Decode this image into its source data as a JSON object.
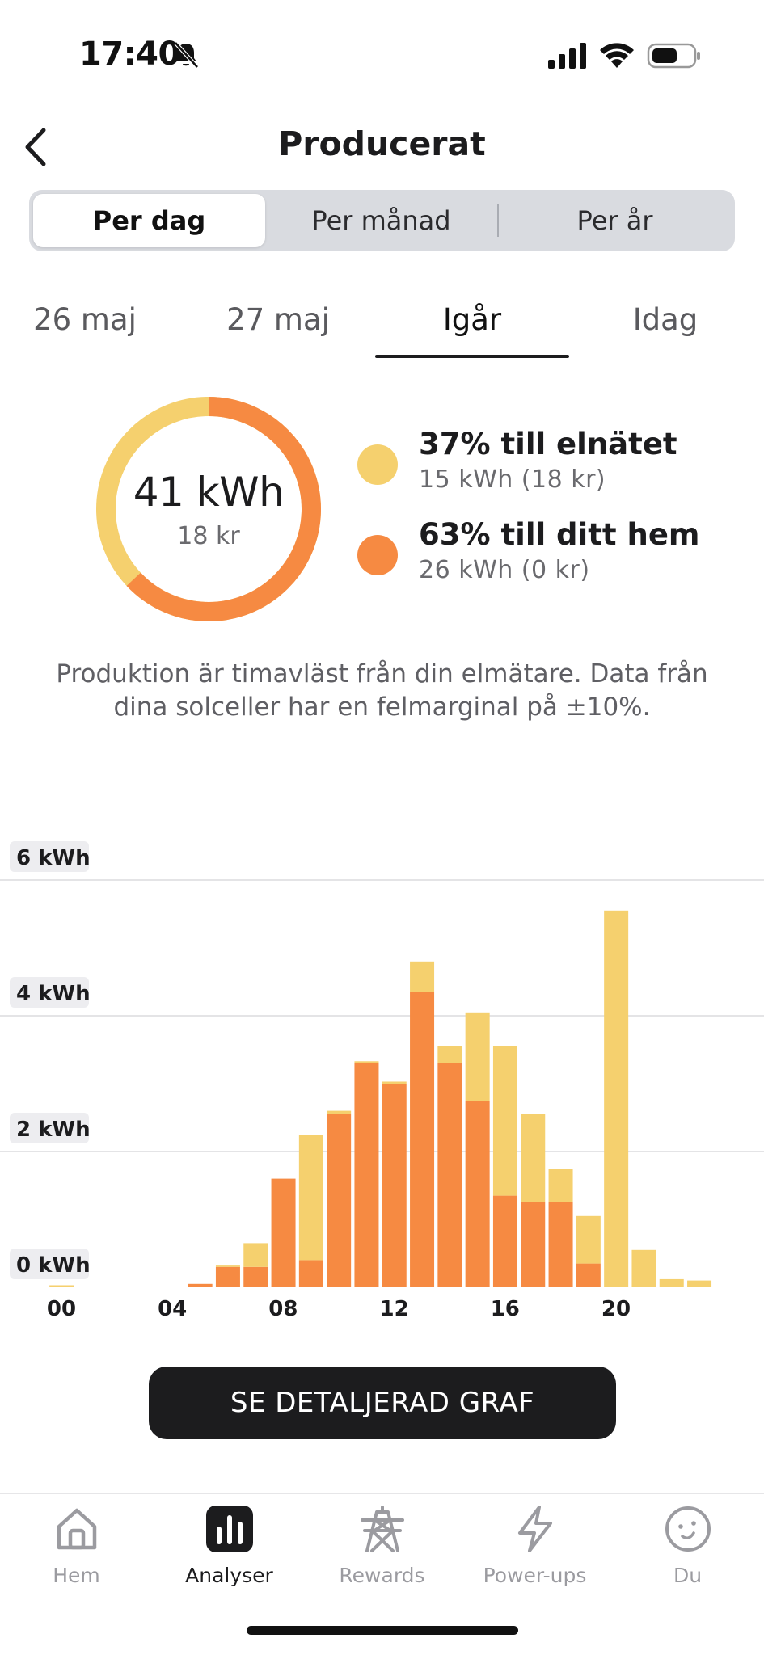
{
  "status_bar": {
    "time": "17:40",
    "icons": [
      "bell-off-icon",
      "cellular-signal-icon",
      "wifi-icon",
      "battery-icon"
    ]
  },
  "header": {
    "title": "Producerat",
    "back_icon": "chevron-left-icon"
  },
  "period_segments": {
    "items": [
      {
        "label": "Per dag",
        "active": true
      },
      {
        "label": "Per månad",
        "active": false
      },
      {
        "label": "Per år",
        "active": false
      }
    ]
  },
  "day_tabs": {
    "items": [
      {
        "label": "26 maj",
        "active": false
      },
      {
        "label": "27 maj",
        "active": false
      },
      {
        "label": "Igår",
        "active": true
      },
      {
        "label": "Idag",
        "active": false
      }
    ]
  },
  "summary": {
    "total": "41 kWh",
    "total_cost": "18 kr",
    "donut_split": {
      "grid_fraction": 0.37,
      "home_fraction": 0.63
    },
    "grid": {
      "title": "37% till elnätet",
      "detail": "15 kWh (18 kr)",
      "color": "#F5D06E"
    },
    "home": {
      "title": "63% till ditt hem",
      "detail": "26 kWh (0 kr)",
      "color": "#F68A42"
    }
  },
  "disclaimer": "Produktion är timavläst från din elmätare. Data från dina solceller har en felmarginal på ±10%.",
  "chart_data": {
    "type": "bar",
    "stacked": true,
    "y_tick_labels": [
      "0 kWh",
      "2 kWh",
      "4 kWh",
      "6 kWh"
    ],
    "y_ticks": [
      0,
      2,
      4,
      6
    ],
    "ylim": [
      0,
      6
    ],
    "x_tick_labels": [
      "00",
      "04",
      "08",
      "12",
      "16",
      "20"
    ],
    "x_ticks": [
      0,
      4,
      8,
      12,
      16,
      20
    ],
    "categories": [
      0,
      1,
      2,
      3,
      4,
      5,
      6,
      7,
      8,
      9,
      10,
      11,
      12,
      13,
      14,
      15,
      16,
      17,
      18,
      19,
      20,
      21,
      22,
      23
    ],
    "series": [
      {
        "color": "#F68A42",
        "values": [
          0,
          0,
          0,
          0,
          0,
          0.05,
          0.3,
          0.3,
          1.6,
          0.4,
          2.55,
          3.3,
          3.0,
          4.35,
          3.3,
          2.75,
          1.35,
          1.25,
          1.25,
          0.35,
          0,
          0,
          0,
          0
        ]
      },
      {
        "color": "#F5D06E",
        "values": [
          0.03,
          0,
          0,
          0,
          0,
          0,
          0.02,
          0.35,
          0,
          1.85,
          0.05,
          0.03,
          0.03,
          0.45,
          0.25,
          1.3,
          2.2,
          1.3,
          0.5,
          0.7,
          5.55,
          0.55,
          0.12,
          0.1
        ]
      }
    ],
    "grid": true
  },
  "cta": {
    "label": "SE DETALJERAD GRAF"
  },
  "bottom_nav": {
    "items": [
      {
        "label": "Hem",
        "icon": "home-icon",
        "active": false
      },
      {
        "label": "Analyser",
        "icon": "bar-chart-icon",
        "active": true
      },
      {
        "label": "Rewards",
        "icon": "power-tower-icon",
        "active": false
      },
      {
        "label": "Power-ups",
        "icon": "lightning-icon",
        "active": false
      },
      {
        "label": "Du",
        "icon": "face-icon",
        "active": false
      }
    ]
  }
}
